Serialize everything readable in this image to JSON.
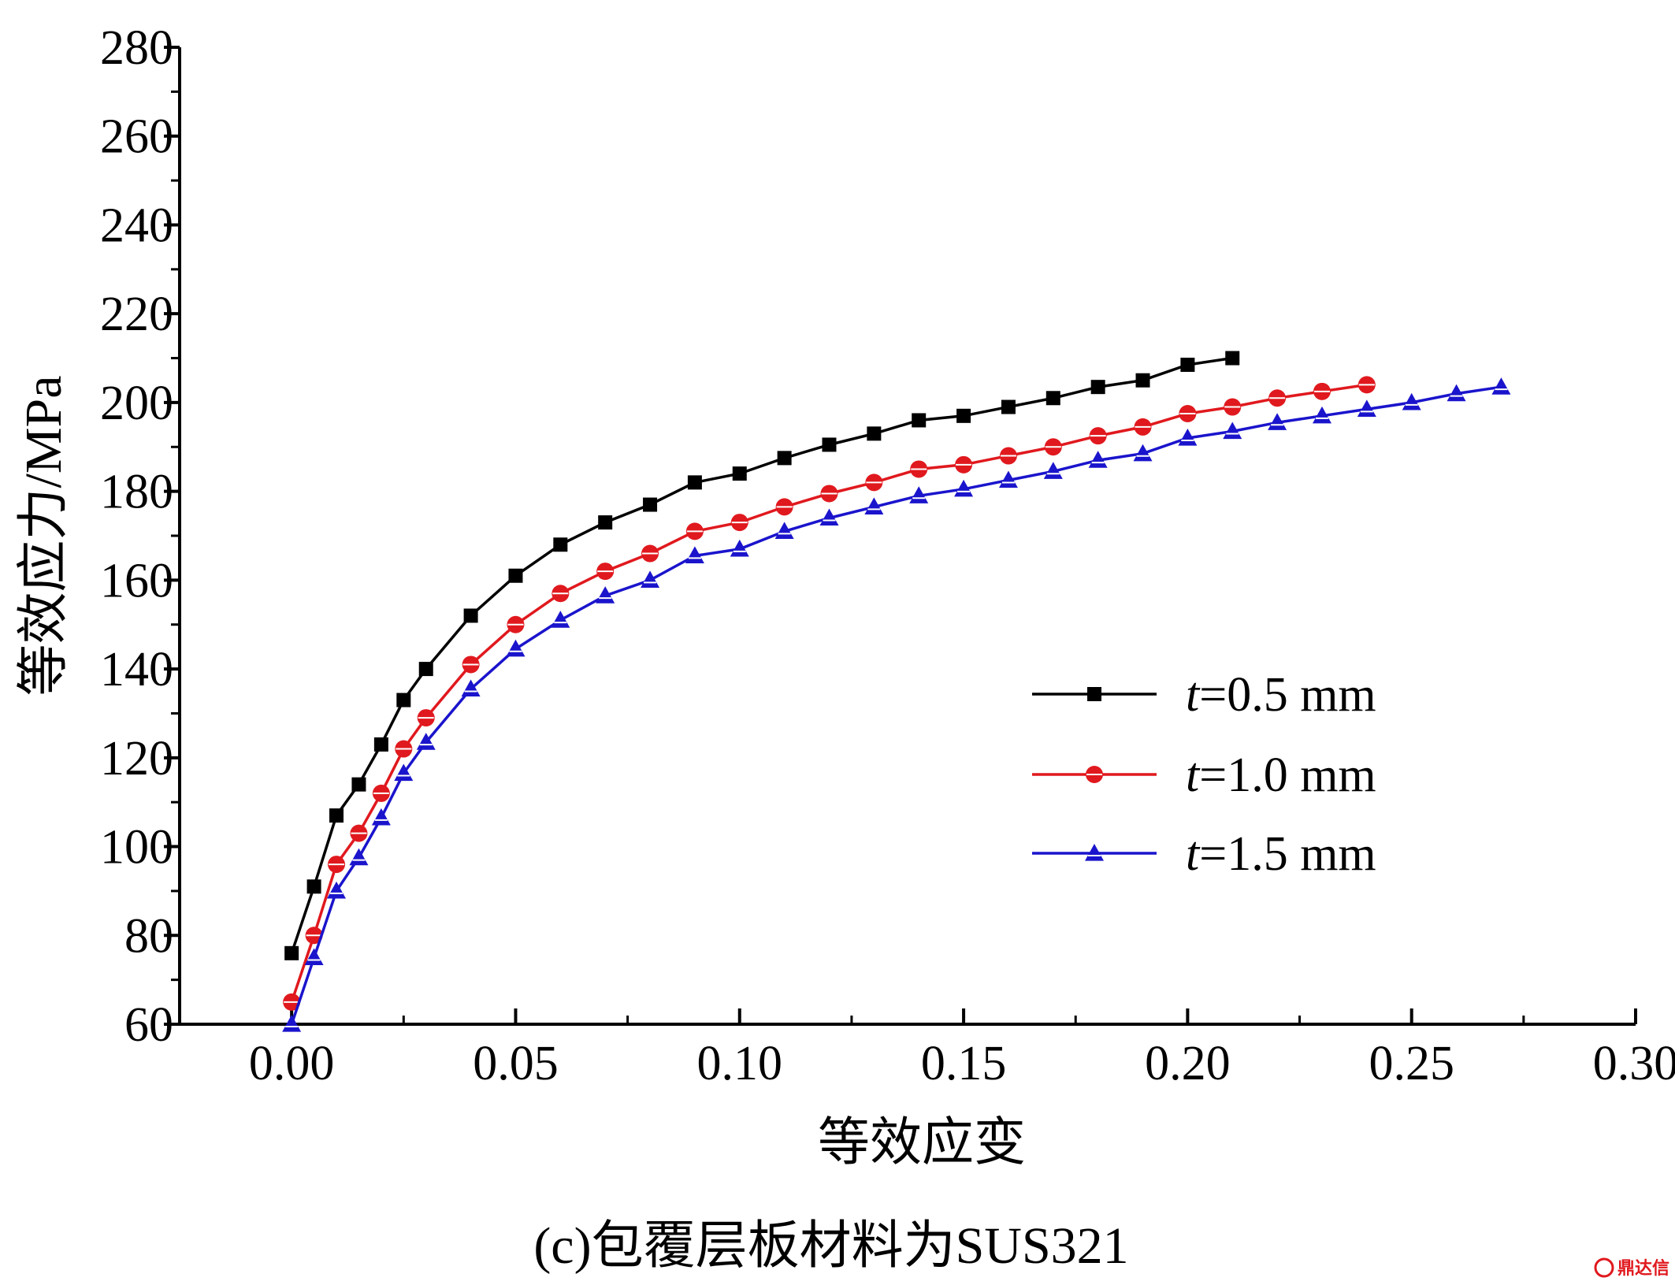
{
  "chart_data": {
    "type": "line",
    "title": "",
    "xlabel": "等效应变",
    "ylabel": "等效应力/MPa",
    "xlim": [
      -0.025,
      0.3
    ],
    "ylim": [
      60,
      280
    ],
    "x_ticks": [
      0.0,
      0.05,
      0.1,
      0.15,
      0.2,
      0.25,
      0.3
    ],
    "x_tick_labels": [
      "0.00",
      "0.05",
      "0.10",
      "0.15",
      "0.20",
      "0.25",
      "0.30"
    ],
    "y_ticks": [
      60,
      80,
      100,
      120,
      140,
      160,
      180,
      200,
      220,
      240,
      260,
      280
    ],
    "y_tick_labels": [
      "60",
      "80",
      "100",
      "120",
      "140",
      "160",
      "180",
      "200",
      "220",
      "240",
      "260",
      "280"
    ],
    "grid": false,
    "legend_position": "right",
    "series": [
      {
        "name": "t=0.5 mm",
        "legend_prefix": "t",
        "legend_suffix": "=0.5 mm",
        "color": "#000000",
        "marker": "square",
        "x": [
          0.0,
          0.005,
          0.01,
          0.015,
          0.02,
          0.025,
          0.03,
          0.04,
          0.05,
          0.06,
          0.07,
          0.08,
          0.09,
          0.1,
          0.11,
          0.12,
          0.13,
          0.14,
          0.15,
          0.16,
          0.17,
          0.18,
          0.19,
          0.2,
          0.21
        ],
        "y": [
          76,
          91,
          107,
          114,
          123,
          133,
          140,
          152,
          161,
          168,
          173,
          177,
          182,
          184,
          187.5,
          190.5,
          193,
          196,
          197,
          199,
          201,
          203.5,
          205,
          208.5,
          210
        ]
      },
      {
        "name": "t=1.0 mm",
        "legend_prefix": "t",
        "legend_suffix": "=1.0 mm",
        "color": "#e0191e",
        "marker": "circle",
        "x": [
          0.0,
          0.005,
          0.01,
          0.015,
          0.02,
          0.025,
          0.03,
          0.04,
          0.05,
          0.06,
          0.07,
          0.08,
          0.09,
          0.1,
          0.11,
          0.12,
          0.13,
          0.14,
          0.15,
          0.16,
          0.17,
          0.18,
          0.19,
          0.2,
          0.21,
          0.22,
          0.23,
          0.24
        ],
        "y": [
          65,
          80,
          96,
          103,
          112,
          122,
          129,
          141,
          150,
          157,
          162,
          166,
          171,
          173,
          176.5,
          179.5,
          182,
          185,
          186,
          188,
          190,
          192.5,
          194.5,
          197.5,
          199,
          201,
          202.5,
          204
        ]
      },
      {
        "name": "t=1.5 mm",
        "legend_prefix": "t",
        "legend_suffix": "=1.5 mm",
        "color": "#1a14cc",
        "marker": "triangle",
        "x": [
          0.0,
          0.005,
          0.01,
          0.015,
          0.02,
          0.025,
          0.03,
          0.04,
          0.05,
          0.06,
          0.07,
          0.08,
          0.09,
          0.1,
          0.11,
          0.12,
          0.13,
          0.14,
          0.15,
          0.16,
          0.17,
          0.18,
          0.19,
          0.2,
          0.21,
          0.22,
          0.23,
          0.24,
          0.25,
          0.26,
          0.27
        ],
        "y": [
          60,
          75,
          90,
          97.5,
          106.5,
          116.5,
          123.5,
          135.5,
          144.5,
          151,
          156.5,
          160,
          165.5,
          167,
          171,
          174,
          176.5,
          179,
          180.5,
          182.5,
          184.5,
          187,
          188.5,
          192,
          193.5,
          195.5,
          197,
          198.5,
          200,
          202,
          203.5
        ]
      }
    ]
  },
  "caption": "(c)包覆层板材料为SUS321",
  "watermark": "鼎达信"
}
